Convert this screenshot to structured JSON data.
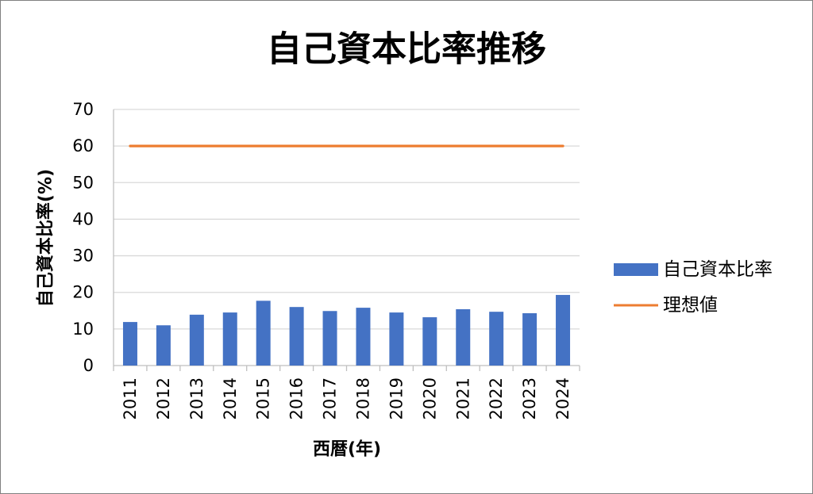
{
  "chart_data": {
    "type": "bar",
    "title": "自己資本比率推移",
    "xlabel": "西暦(年)",
    "ylabel": "自己資本比率(%)",
    "categories": [
      "2011",
      "2012",
      "2013",
      "2014",
      "2015",
      "2016",
      "2017",
      "2018",
      "2019",
      "2020",
      "2021",
      "2022",
      "2023",
      "2024"
    ],
    "ylim": [
      0,
      70
    ],
    "yticks": [
      "0",
      "10",
      "20",
      "30",
      "40",
      "50",
      "60",
      "70"
    ],
    "grid": true,
    "legend": "right",
    "series": [
      {
        "name": "自己資本比率",
        "type": "bar",
        "color": "#4472C4",
        "values": [
          11.9,
          11.0,
          13.9,
          14.5,
          17.7,
          16.0,
          14.9,
          15.8,
          14.5,
          13.2,
          15.4,
          14.7,
          14.3,
          19.3
        ]
      },
      {
        "name": "理想値",
        "type": "line",
        "color": "#ED7D31",
        "values": [
          60,
          60,
          60,
          60,
          60,
          60,
          60,
          60,
          60,
          60,
          60,
          60,
          60,
          60
        ]
      }
    ]
  },
  "colors": {
    "background": "#FFFFFF",
    "border": "#808080",
    "gridline": "#D9D9D9",
    "axis": "#BFBFBF"
  }
}
